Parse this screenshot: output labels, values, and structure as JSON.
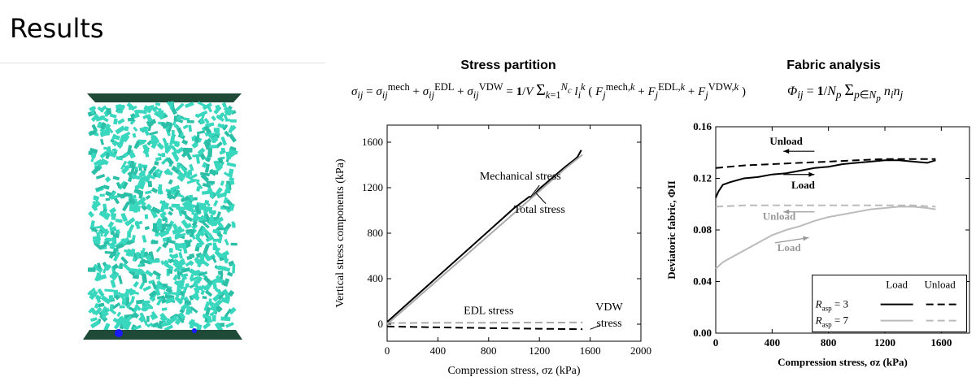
{
  "slide": {
    "title": "Results"
  },
  "left_panel": {
    "colors": {
      "plate": "#1e4a37",
      "particle": "#3ad7bf",
      "marker": "#1a1aff"
    }
  },
  "stress_panel": {
    "title": "Stress partition",
    "formula": "σ_ij = σ_ij^mech + σ_ij^EDL + σ_ij^VDW = (1/V) Σ_{k=1}^{N_c} l_i^k ( F_j^mech,k + F_j^EDL,k + F_j^VDW,k )"
  },
  "fabric_panel": {
    "title": "Fabric analysis",
    "formula": "Φ_ij = (1/N_p) Σ_{p∈N_p} n_i n_j"
  },
  "chart_data": [
    {
      "type": "line",
      "xlabel": "Compression stress, σz (kPa)",
      "ylabel": "Vertical stress components (kPa)",
      "xlim": [
        0,
        2000
      ],
      "ylim": [
        -150,
        1750
      ],
      "xticks": [
        "0",
        "400",
        "800",
        "1200",
        "1600",
        "2000"
      ],
      "yticks": [
        "0",
        "400",
        "800",
        "1200",
        "1600"
      ],
      "series": [
        {
          "name": "Mechanical stress",
          "style": "solid",
          "color": "#000000",
          "x": [
            0,
            200,
            400,
            600,
            800,
            1000,
            1120,
            1140,
            1200,
            1400,
            1480,
            1500,
            1530
          ],
          "y": [
            20,
            220,
            420,
            620,
            820,
            1020,
            1120,
            1115,
            1190,
            1380,
            1450,
            1470,
            1530
          ]
        },
        {
          "name": "Total stress",
          "style": "solid",
          "color": "#aaaaaa",
          "x": [
            0,
            200,
            400,
            600,
            800,
            1000,
            1200,
            1400,
            1540
          ],
          "y": [
            0,
            195,
            390,
            585,
            780,
            975,
            1170,
            1365,
            1490
          ]
        },
        {
          "name": "EDL stress",
          "style": "dashed",
          "color": "#aaaaaa",
          "x": [
            0,
            400,
            800,
            1200,
            1540
          ],
          "y": [
            10,
            12,
            13,
            14,
            15
          ]
        },
        {
          "name": "VDW stress",
          "style": "dashed",
          "color": "#000000",
          "x": [
            0,
            400,
            800,
            1200,
            1540
          ],
          "y": [
            -20,
            -28,
            -34,
            -40,
            -44
          ]
        }
      ],
      "annotations": [
        {
          "text": "Mechanical stress",
          "x": 1050,
          "y": 1270
        },
        {
          "text": "Total stress",
          "x": 1200,
          "y": 980
        },
        {
          "text": "EDL stress",
          "x": 800,
          "y": 90
        },
        {
          "text": "VDW",
          "x": 1750,
          "y": 120
        },
        {
          "text": "stress",
          "x": 1750,
          "y": -20
        }
      ]
    },
    {
      "type": "line",
      "xlabel": "Compression stress, σz (kPa)",
      "ylabel": "Deviatoric fabric, ΦII",
      "xlim": [
        0,
        1800
      ],
      "ylim": [
        0,
        0.16
      ],
      "xticks": [
        "0",
        "400",
        "800",
        "1200",
        "1600"
      ],
      "yticks": [
        "0.00",
        "0.04",
        "0.08",
        "0.12",
        "0.16"
      ],
      "series": [
        {
          "name": "R_asp = 3 Load",
          "style": "solid",
          "color": "#000000",
          "x": [
            0,
            20,
            50,
            100,
            200,
            300,
            400,
            500,
            600,
            700,
            800,
            900,
            1000,
            1100,
            1200,
            1300,
            1400,
            1500,
            1560
          ],
          "y": [
            0.105,
            0.11,
            0.115,
            0.117,
            0.12,
            0.121,
            0.123,
            0.124,
            0.126,
            0.128,
            0.129,
            0.131,
            0.132,
            0.133,
            0.134,
            0.134,
            0.133,
            0.132,
            0.134
          ]
        },
        {
          "name": "R_asp = 3 Unload",
          "style": "dashed",
          "color": "#000000",
          "x": [
            0,
            200,
            400,
            600,
            800,
            1000,
            1200,
            1400,
            1560
          ],
          "y": [
            0.128,
            0.13,
            0.131,
            0.132,
            0.133,
            0.134,
            0.135,
            0.135,
            0.135
          ]
        },
        {
          "name": "R_asp = 7 Load",
          "style": "solid",
          "color": "#bbbbbb",
          "x": [
            0,
            50,
            100,
            200,
            300,
            400,
            500,
            600,
            700,
            800,
            900,
            1000,
            1100,
            1200,
            1300,
            1400,
            1500,
            1560
          ],
          "y": [
            0.05,
            0.055,
            0.058,
            0.064,
            0.07,
            0.076,
            0.08,
            0.083,
            0.087,
            0.09,
            0.092,
            0.094,
            0.096,
            0.097,
            0.098,
            0.098,
            0.097,
            0.096
          ]
        },
        {
          "name": "R_asp = 7 Unload",
          "style": "dashed",
          "color": "#bbbbbb",
          "x": [
            0,
            200,
            400,
            600,
            800,
            1000,
            1200,
            1400,
            1560
          ],
          "y": [
            0.098,
            0.099,
            0.099,
            0.099,
            0.099,
            0.099,
            0.099,
            0.099,
            0.098
          ]
        }
      ],
      "annotations": [
        {
          "text": "Unload",
          "x": 500,
          "y": 0.146
        },
        {
          "text": "Load",
          "x": 620,
          "y": 0.112
        },
        {
          "text": "Unload",
          "x": 450,
          "y": 0.088
        },
        {
          "text": "Load",
          "x": 520,
          "y": 0.0635
        }
      ],
      "legend": {
        "placement": "bottom-right",
        "headers": [
          "Load",
          "Unload"
        ],
        "rows": [
          {
            "label": "R",
            "sub": "asp",
            "value": " = 3",
            "color": "#000000"
          },
          {
            "label": "R",
            "sub": "asp",
            "value": " = 7",
            "color": "#bbbbbb"
          }
        ]
      }
    }
  ]
}
